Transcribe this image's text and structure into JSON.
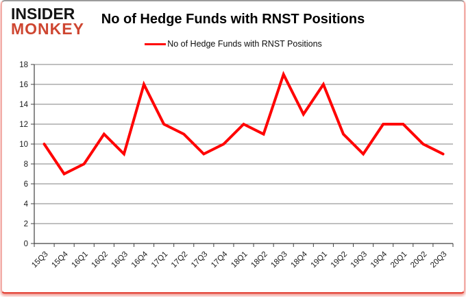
{
  "logo": {
    "line1": "INSIDER",
    "line2": "MONKEY"
  },
  "title": "No of Hedge Funds with RNST Positions",
  "legend": {
    "label": "No of Hedge Funds with RNST Positions",
    "color": "#ff0000"
  },
  "colors": {
    "line": "#ff0000",
    "gridline": "#808080",
    "axis": "#404040",
    "tick_text": "#1a1a1a",
    "logo_red": "#ce4631",
    "border_red": "#e23b2e"
  },
  "chart_data": {
    "type": "line",
    "title": "No of Hedge Funds with RNST Positions",
    "xlabel": "",
    "ylabel": "",
    "categories": [
      "15Q3",
      "15Q4",
      "16Q1",
      "16Q2",
      "16Q3",
      "16Q4",
      "17Q1",
      "17Q2",
      "17Q3",
      "17Q4",
      "18Q1",
      "18Q2",
      "18Q3",
      "18Q4",
      "19Q1",
      "19Q2",
      "19Q3",
      "19Q4",
      "20Q1",
      "20Q2",
      "20Q3"
    ],
    "series": [
      {
        "name": "No of Hedge Funds with RNST Positions",
        "color": "#ff0000",
        "values": [
          10,
          7,
          8,
          11,
          9,
          16,
          12,
          11,
          9,
          10,
          12,
          11,
          17,
          13,
          16,
          11,
          9,
          12,
          12,
          10,
          9
        ]
      }
    ],
    "ylim": [
      0,
      18
    ],
    "yticks": [
      0,
      2,
      4,
      6,
      8,
      10,
      12,
      14,
      16,
      18
    ],
    "grid": true,
    "legend_position": "top-center",
    "x_label_rotation_deg": -45
  }
}
